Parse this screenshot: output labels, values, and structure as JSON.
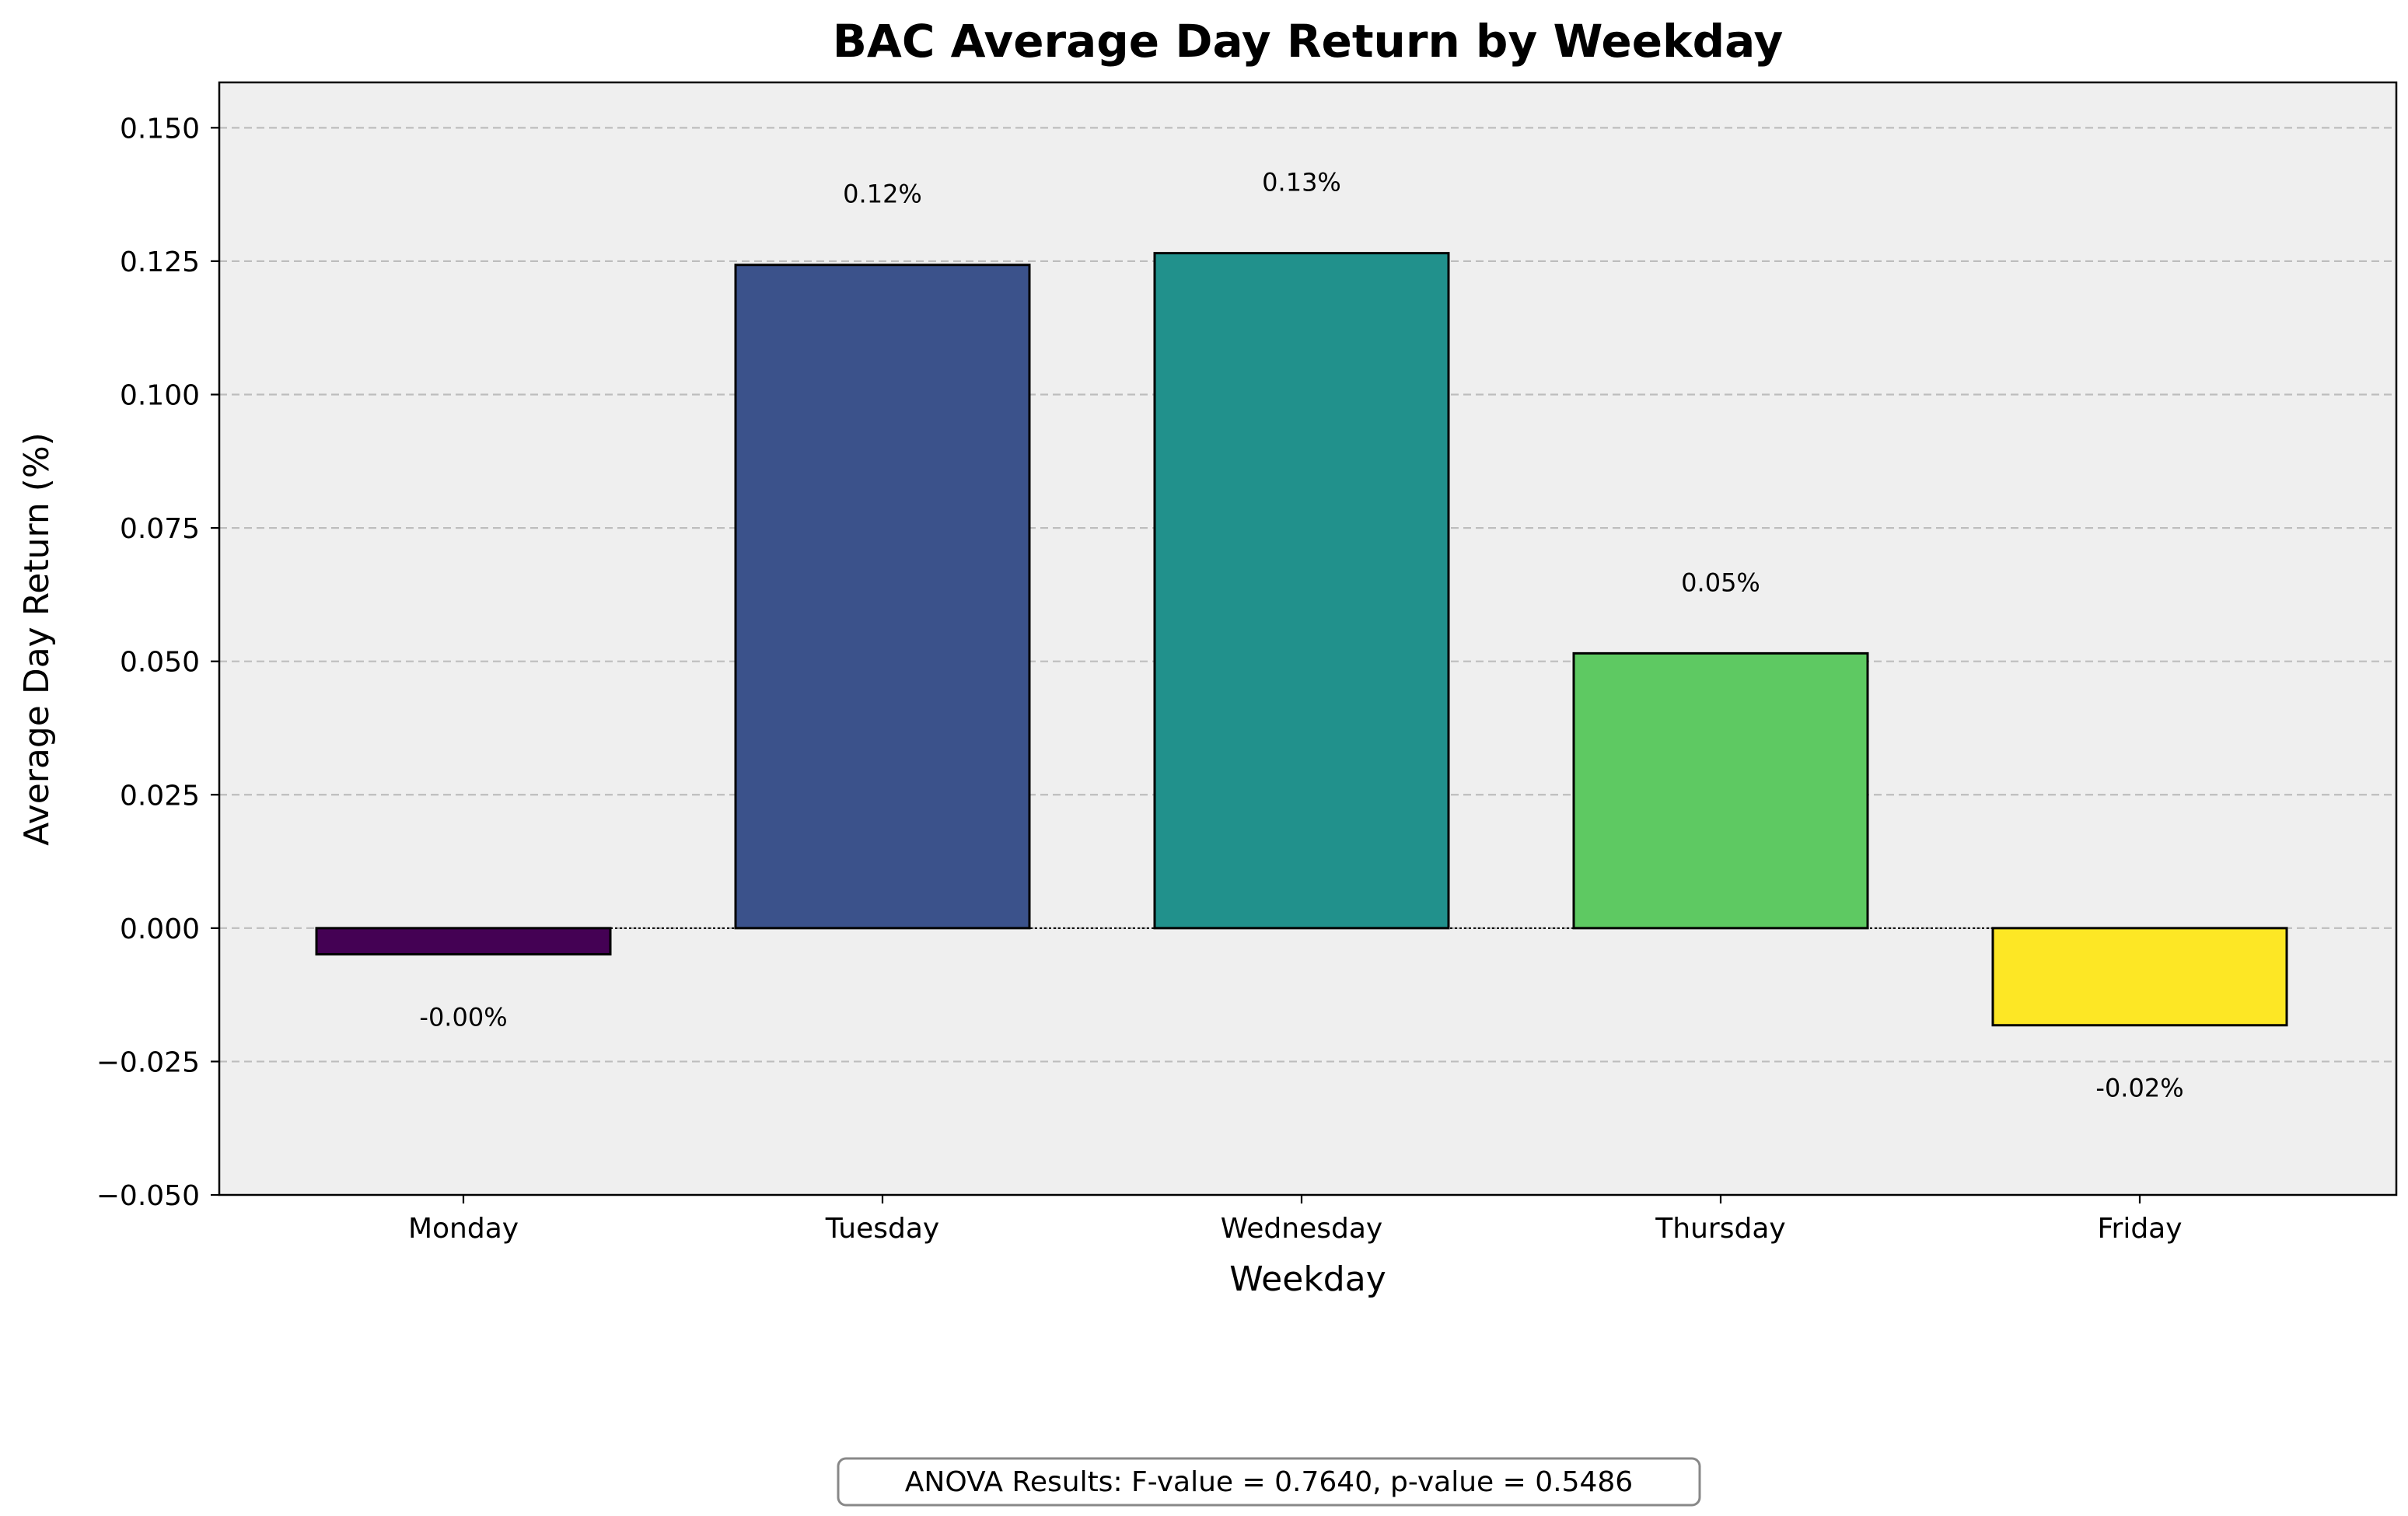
{
  "chart_data": {
    "type": "bar",
    "title": "BAC Average Day Return by Weekday",
    "xlabel": "Weekday",
    "ylabel": "Average Day Return (%)",
    "categories": [
      "Monday",
      "Tuesday",
      "Wednesday",
      "Thursday",
      "Friday"
    ],
    "values": [
      -0.0049,
      0.1243,
      0.1265,
      0.0515,
      -0.0182
    ],
    "data_labels": [
      "-0.00%",
      "0.12%",
      "0.13%",
      "0.05%",
      "-0.02%"
    ],
    "bar_colors": [
      "#440154",
      "#3b528b",
      "#21918c",
      "#5ec962",
      "#fde725"
    ],
    "ylim": [
      -0.05,
      0.1585
    ],
    "yticks": [
      -0.05,
      -0.025,
      0,
      0.025,
      0.05,
      0.075,
      0.1,
      0.125,
      0.15
    ],
    "ytick_labels": [
      "−0.050",
      "−0.025",
      "0.000",
      "0.025",
      "0.050",
      "0.075",
      "0.100",
      "0.125",
      "0.150"
    ],
    "grid": "y-dashed",
    "plot_background": "#efefef",
    "annotation": "ANOVA Results: F-value = 0.7640, p-value = 0.5486"
  }
}
